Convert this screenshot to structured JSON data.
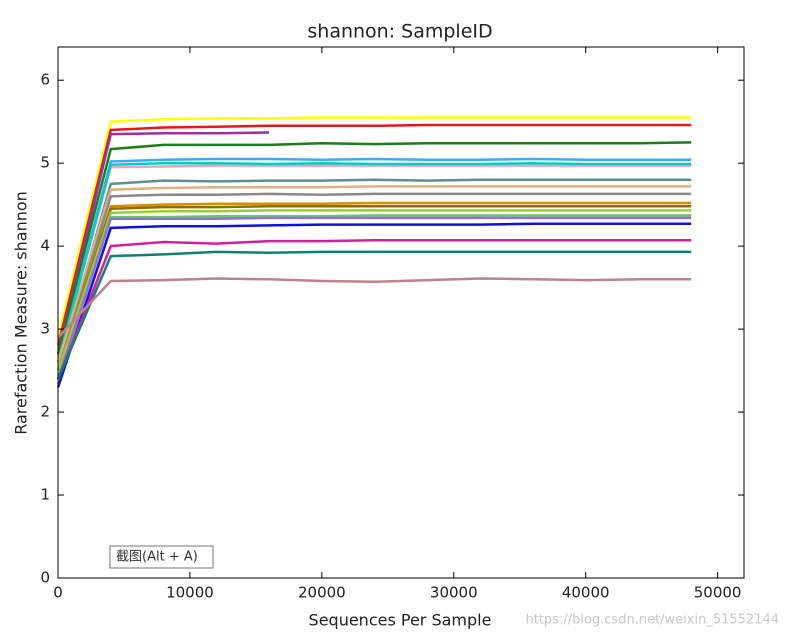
{
  "chart_data": {
    "type": "line",
    "title": "shannon: SampleID",
    "x_label": "Sequences Per Sample",
    "y_label": "Rarefaction Measure: shannon",
    "annotations": [
      "截图(Alt + A)",
      "https://blog.csdn.net/weixin_51552144"
    ],
    "x": [
      10,
      4000,
      8000,
      12000,
      16000,
      20000,
      24000,
      28000,
      32000,
      36000,
      40000,
      44000,
      48000
    ],
    "xlim": [
      0,
      52000
    ],
    "xticks": [
      0,
      10000,
      20000,
      30000,
      40000,
      50000
    ],
    "ylim": [
      0,
      6.4
    ],
    "yticks": [
      0,
      1,
      2,
      3,
      4,
      5,
      6
    ],
    "grid": false,
    "series": [
      {
        "color": "#ffff00",
        "values": [
          2.9,
          5.5,
          5.53,
          5.54,
          5.54,
          5.55,
          5.55,
          5.55,
          5.55,
          5.55,
          5.55,
          5.55,
          5.55
        ]
      },
      {
        "color": "#e31a1c",
        "values": [
          2.8,
          5.4,
          5.43,
          5.44,
          5.45,
          5.45,
          5.45,
          5.46,
          5.46,
          5.46,
          5.46,
          5.46,
          5.46
        ]
      },
      {
        "color": "#9b30a0",
        "values": [
          2.7,
          5.35,
          5.36,
          5.36,
          5.37,
          null,
          null,
          null,
          null,
          null,
          null,
          null,
          null
        ]
      },
      {
        "color": "#1a7f1a",
        "values": [
          2.7,
          5.17,
          5.22,
          5.22,
          5.22,
          5.24,
          5.23,
          5.24,
          5.24,
          5.24,
          5.24,
          5.24,
          5.25
        ]
      },
      {
        "color": "#3fa9f5",
        "values": [
          2.6,
          5.02,
          5.04,
          5.05,
          5.05,
          5.04,
          5.05,
          5.04,
          5.04,
          5.05,
          5.04,
          5.04,
          5.04
        ]
      },
      {
        "color": "#f0a0c0",
        "values": [
          2.6,
          4.95,
          4.96,
          4.97,
          4.97,
          4.97,
          4.97,
          4.97,
          4.97,
          4.97,
          4.97,
          4.97,
          4.97
        ]
      },
      {
        "color": "#00cccc",
        "values": [
          2.6,
          4.98,
          5.0,
          5.0,
          4.99,
          5.0,
          4.99,
          4.99,
          4.99,
          5.0,
          4.99,
          4.99,
          4.99
        ]
      },
      {
        "color": "#5f8f8f",
        "values": [
          2.5,
          4.75,
          4.79,
          4.78,
          4.79,
          4.79,
          4.8,
          4.79,
          4.8,
          4.8,
          4.8,
          4.8,
          4.8
        ]
      },
      {
        "color": "#e0b080",
        "values": [
          2.6,
          4.68,
          4.7,
          4.71,
          4.71,
          4.71,
          4.72,
          4.72,
          4.72,
          4.72,
          4.72,
          4.72,
          4.72
        ]
      },
      {
        "color": "#888888",
        "values": [
          2.5,
          4.6,
          4.62,
          4.62,
          4.63,
          4.62,
          4.63,
          4.63,
          4.63,
          4.63,
          4.63,
          4.63,
          4.63
        ]
      },
      {
        "color": "#d98c00",
        "values": [
          2.5,
          4.48,
          4.5,
          4.51,
          4.51,
          4.51,
          4.52,
          4.52,
          4.52,
          4.52,
          4.52,
          4.52,
          4.52
        ]
      },
      {
        "color": "#8b6f00",
        "values": [
          2.5,
          4.45,
          4.47,
          4.47,
          4.48,
          4.48,
          4.48,
          4.48,
          4.48,
          4.48,
          4.48,
          4.48,
          4.48
        ]
      },
      {
        "color": "#9acd32",
        "values": [
          2.5,
          4.4,
          4.42,
          4.42,
          4.43,
          4.43,
          4.43,
          4.43,
          4.43,
          4.43,
          4.43,
          4.43,
          4.43
        ]
      },
      {
        "color": "#66cc66",
        "values": [
          2.4,
          4.35,
          4.35,
          4.36,
          4.36,
          4.36,
          4.37,
          4.37,
          4.37,
          4.37,
          4.37,
          4.37,
          4.37
        ]
      },
      {
        "color": "#9370db",
        "values": [
          2.4,
          4.33,
          4.33,
          4.33,
          4.34,
          4.34,
          4.34,
          4.34,
          4.34,
          4.34,
          4.34,
          4.34,
          4.34
        ]
      },
      {
        "color": "#1010e0",
        "values": [
          2.3,
          4.22,
          4.24,
          4.24,
          4.25,
          4.26,
          4.26,
          4.26,
          4.26,
          4.27,
          4.27,
          4.27,
          4.27
        ]
      },
      {
        "color": "#d0209c",
        "values": [
          2.4,
          4.0,
          4.05,
          4.03,
          4.06,
          4.06,
          4.07,
          4.07,
          4.07,
          4.07,
          4.07,
          4.07,
          4.07
        ]
      },
      {
        "color": "#108070",
        "values": [
          2.4,
          3.88,
          3.9,
          3.93,
          3.92,
          3.93,
          3.93,
          3.93,
          3.93,
          3.93,
          3.93,
          3.93,
          3.93
        ]
      },
      {
        "color": "#c08090",
        "values": [
          2.9,
          3.58,
          3.59,
          3.61,
          3.6,
          3.58,
          3.57,
          3.59,
          3.61,
          3.6,
          3.59,
          3.6,
          3.6
        ]
      }
    ]
  }
}
